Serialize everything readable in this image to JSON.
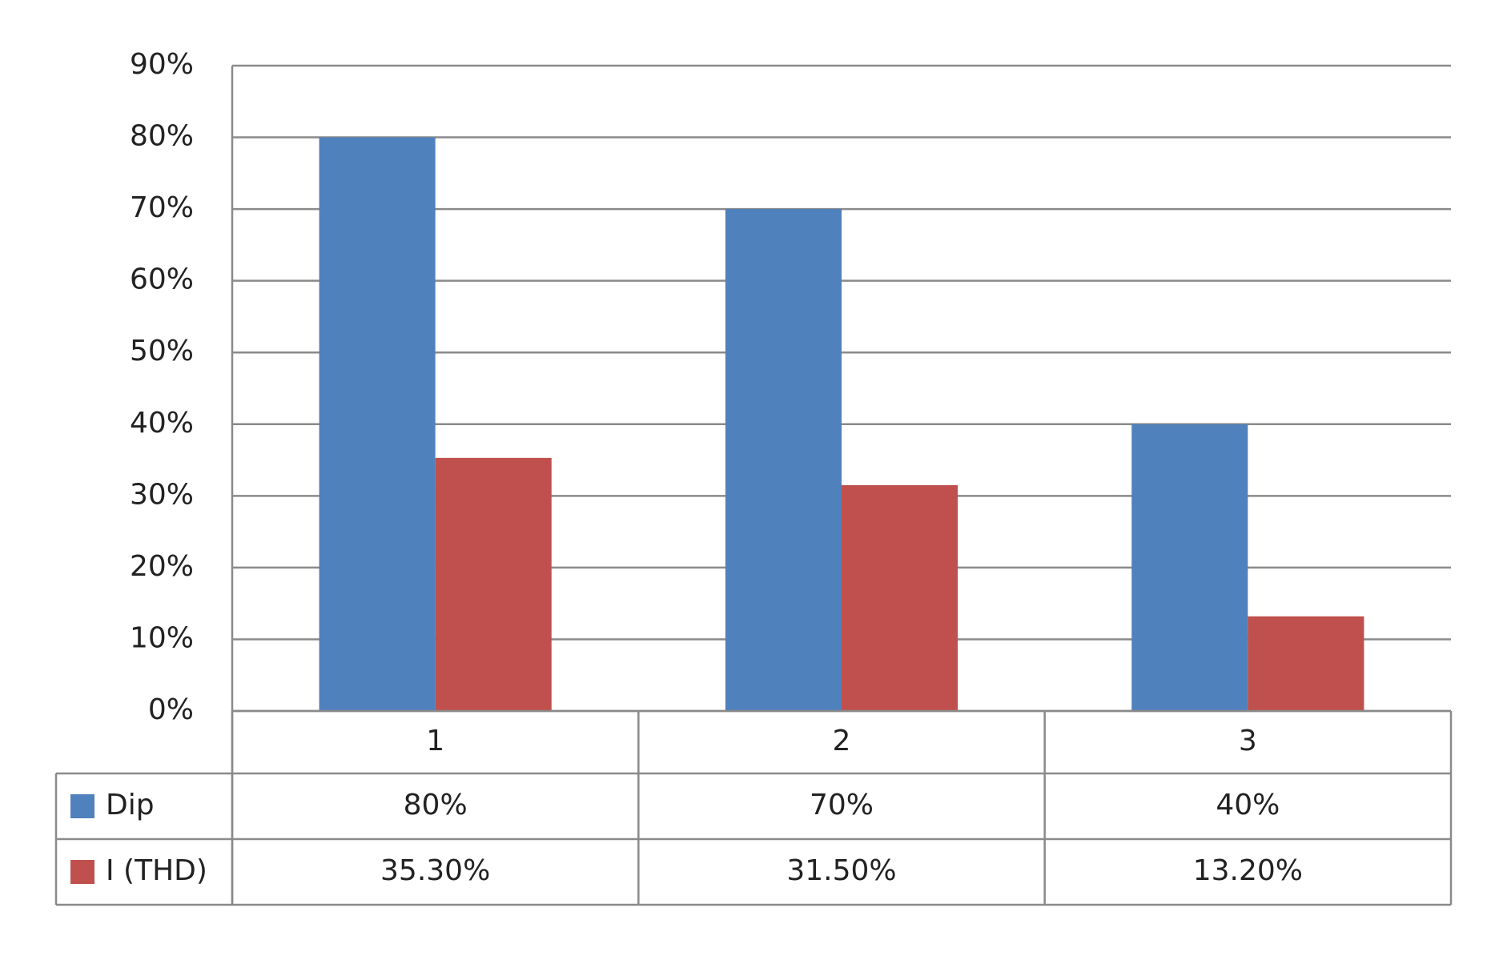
{
  "chart_data": {
    "type": "bar",
    "categories": [
      "1",
      "2",
      "3"
    ],
    "series": [
      {
        "name": "Dip",
        "color": "#4f81bd",
        "values": [
          80,
          70,
          40
        ],
        "value_labels": [
          "80%",
          "70%",
          "40%"
        ]
      },
      {
        "name": "I (THD)",
        "color": "#c0504d",
        "values": [
          35.3,
          31.5,
          13.2
        ],
        "value_labels": [
          "35.30%",
          "31.50%",
          "13.20%"
        ]
      }
    ],
    "ylim": [
      0,
      90
    ],
    "yticks": [
      {
        "value": 0,
        "label": "0%"
      },
      {
        "value": 10,
        "label": "10%"
      },
      {
        "value": 20,
        "label": "20%"
      },
      {
        "value": 30,
        "label": "30%"
      },
      {
        "value": 40,
        "label": "40%"
      },
      {
        "value": 50,
        "label": "50%"
      },
      {
        "value": 60,
        "label": "60%"
      },
      {
        "value": 70,
        "label": "70%"
      },
      {
        "value": 80,
        "label": "80%"
      },
      {
        "value": 90,
        "label": "90%"
      }
    ],
    "grid": true
  }
}
